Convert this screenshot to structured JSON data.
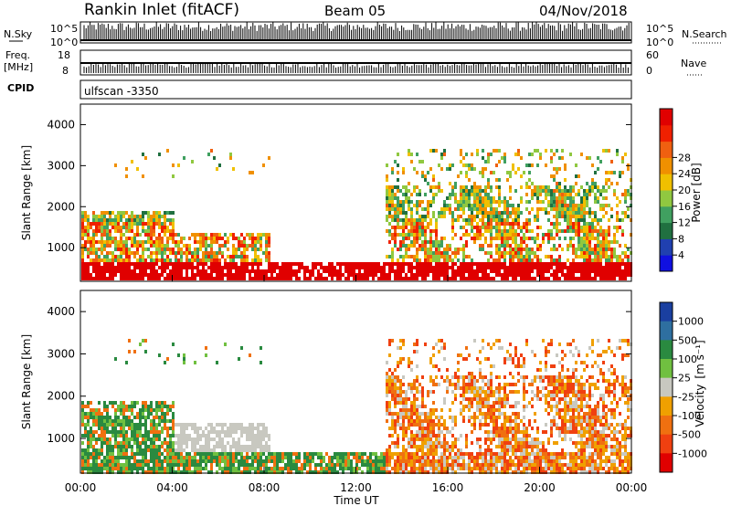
{
  "header": {
    "station": "Rankin Inlet (fitACF)",
    "beam": "Beam 05",
    "date": "04/Nov/2018"
  },
  "strips": {
    "nsky_label": "N.Sky",
    "nsky_tick_top": "10^5",
    "nsky_tick_bottom": "10^0",
    "nsearch_label": "N.Search",
    "nsearch_tick_top": "10^5",
    "nsearch_tick_bottom": "10^0",
    "freq_label": "Freq.",
    "freq_unit": "[MHz]",
    "freq_tick_top": "18",
    "freq_tick_bottom": "8",
    "nave_label": "Nave",
    "nave_tick_top": "60",
    "nave_tick_bottom": "0",
    "cpid_label": "CPID",
    "cpid_value": "ulfscan -3350"
  },
  "chart_data": [
    {
      "type": "heatmap",
      "panel": "power",
      "ylabel": "Slant Range [km]",
      "ylim": [
        180,
        4500
      ],
      "y_ticks": [
        "1000",
        "2000",
        "3000",
        "4000"
      ],
      "x_ticks": [
        "00:00",
        "04:00",
        "08:00",
        "12:00",
        "16:00",
        "20:00",
        "00:00"
      ],
      "xlim_hours": [
        0,
        24
      ],
      "colorbar": {
        "label": "Power [dB]",
        "ticks": [
          "4",
          "8",
          "12",
          "16",
          "20",
          "24",
          "28"
        ],
        "colors": [
          "#1010e0",
          "#2040b0",
          "#207040",
          "#40a060",
          "#90c840",
          "#f0c000",
          "#f09000",
          "#f06010",
          "#f02000",
          "#e00000"
        ]
      }
    },
    {
      "type": "heatmap",
      "panel": "velocity",
      "ylabel": "Slant Range [km]",
      "ylim": [
        180,
        4500
      ],
      "y_ticks": [
        "1000",
        "2000",
        "3000",
        "4000"
      ],
      "x_ticks": [
        "00:00",
        "04:00",
        "08:00",
        "12:00",
        "16:00",
        "20:00",
        "00:00"
      ],
      "xlabel": "Time UT",
      "colorbar": {
        "label": "Velocity",
        "unit_text": "[m s⁻¹]",
        "ticks": [
          "1000",
          "500",
          "100",
          "25",
          "-25",
          "-100",
          "-500",
          "-1000"
        ],
        "colors": [
          "#1a3fa0",
          "#2e6fa0",
          "#2a8a40",
          "#70c040",
          "#c8c8c0",
          "#f0a000",
          "#f07010",
          "#f04010",
          "#e00000"
        ]
      }
    }
  ]
}
